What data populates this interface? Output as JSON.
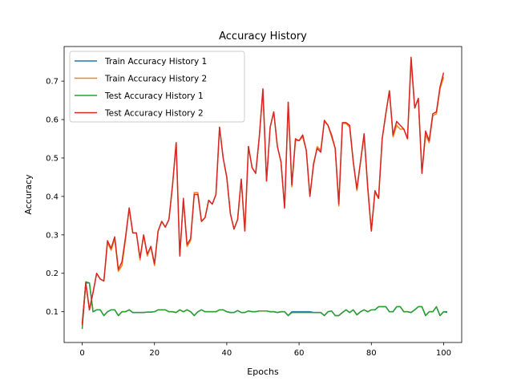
{
  "chart_data": {
    "type": "line",
    "title": "Accuracy History",
    "xlabel": "Epochs",
    "ylabel": "Accuracy",
    "xlim": [
      -5,
      105
    ],
    "ylim": [
      0.02,
      0.79
    ],
    "xticks": [
      0,
      20,
      40,
      60,
      80,
      100
    ],
    "yticks": [
      0.1,
      0.2,
      0.3,
      0.4,
      0.5,
      0.6,
      0.7
    ],
    "grid": false,
    "legend_position": "top-left",
    "series": [
      {
        "name": "Train Accuracy History 1",
        "color": "#1f77b4",
        "values": [
          0.07,
          0.175,
          0.175,
          0.1,
          0.105,
          0.105,
          0.09,
          0.1,
          0.105,
          0.105,
          0.09,
          0.1,
          0.1,
          0.105,
          0.098,
          0.098,
          0.098,
          0.098,
          0.099,
          0.099,
          0.1,
          0.105,
          0.105,
          0.105,
          0.1,
          0.1,
          0.098,
          0.105,
          0.1,
          0.105,
          0.1,
          0.09,
          0.1,
          0.105,
          0.1,
          0.1,
          0.1,
          0.1,
          0.105,
          0.105,
          0.1,
          0.098,
          0.098,
          0.103,
          0.098,
          0.098,
          0.102,
          0.1,
          0.1,
          0.102,
          0.102,
          0.102,
          0.1,
          0.1,
          0.098,
          0.1,
          0.1,
          0.09,
          0.1,
          0.1,
          0.1,
          0.1,
          0.1,
          0.1,
          0.098,
          0.098,
          0.098,
          0.09,
          0.1,
          0.102,
          0.09,
          0.09,
          0.098,
          0.105,
          0.098,
          0.105,
          0.092,
          0.1,
          0.105,
          0.1,
          0.105,
          0.105,
          0.113,
          0.113,
          0.113,
          0.1,
          0.1,
          0.113,
          0.113,
          0.1,
          0.1,
          0.098,
          0.105,
          0.113,
          0.113,
          0.09,
          0.1,
          0.1,
          0.113,
          0.09,
          0.1,
          0.1
        ]
      },
      {
        "name": "Train Accuracy History 2",
        "color": "#ff7f0e",
        "values": [
          0.07,
          0.175,
          0.105,
          0.15,
          0.2,
          0.185,
          0.18,
          0.28,
          0.26,
          0.29,
          0.205,
          0.22,
          0.29,
          0.37,
          0.305,
          0.305,
          0.235,
          0.3,
          0.245,
          0.27,
          0.22,
          0.31,
          0.335,
          0.32,
          0.34,
          0.43,
          0.54,
          0.245,
          0.39,
          0.27,
          0.285,
          0.41,
          0.41,
          0.335,
          0.345,
          0.39,
          0.38,
          0.405,
          0.58,
          0.5,
          0.45,
          0.355,
          0.315,
          0.34,
          0.445,
          0.31,
          0.53,
          0.475,
          0.46,
          0.555,
          0.675,
          0.44,
          0.58,
          0.62,
          0.53,
          0.49,
          0.37,
          0.645,
          0.425,
          0.545,
          0.545,
          0.555,
          0.52,
          0.4,
          0.48,
          0.53,
          0.52,
          0.595,
          0.585,
          0.555,
          0.525,
          0.375,
          0.59,
          0.59,
          0.58,
          0.49,
          0.415,
          0.49,
          0.56,
          0.42,
          0.31,
          0.41,
          0.395,
          0.55,
          0.615,
          0.675,
          0.555,
          0.585,
          0.575,
          0.575,
          0.55,
          0.755,
          0.63,
          0.655,
          0.46,
          0.56,
          0.54,
          0.61,
          0.615,
          0.68,
          0.71
        ]
      },
      {
        "name": "Test Accuracy History 1",
        "color": "#2ca02c",
        "values": [
          0.055,
          0.178,
          0.175,
          0.1,
          0.105,
          0.105,
          0.09,
          0.1,
          0.105,
          0.105,
          0.09,
          0.1,
          0.1,
          0.105,
          0.098,
          0.098,
          0.098,
          0.098,
          0.099,
          0.099,
          0.1,
          0.105,
          0.105,
          0.105,
          0.1,
          0.1,
          0.098,
          0.105,
          0.1,
          0.105,
          0.1,
          0.09,
          0.1,
          0.105,
          0.1,
          0.1,
          0.1,
          0.1,
          0.105,
          0.105,
          0.1,
          0.098,
          0.098,
          0.103,
          0.098,
          0.098,
          0.102,
          0.1,
          0.1,
          0.102,
          0.102,
          0.102,
          0.1,
          0.1,
          0.098,
          0.1,
          0.1,
          0.09,
          0.098,
          0.098,
          0.098,
          0.098,
          0.098,
          0.098,
          0.098,
          0.098,
          0.098,
          0.09,
          0.1,
          0.102,
          0.09,
          0.09,
          0.098,
          0.105,
          0.098,
          0.105,
          0.092,
          0.1,
          0.105,
          0.1,
          0.105,
          0.105,
          0.113,
          0.113,
          0.113,
          0.1,
          0.1,
          0.113,
          0.113,
          0.1,
          0.1,
          0.098,
          0.105,
          0.113,
          0.113,
          0.09,
          0.1,
          0.1,
          0.113,
          0.09,
          0.1,
          0.098
        ]
      },
      {
        "name": "Test Accuracy History 2",
        "color": "#d62728",
        "values": [
          0.065,
          0.175,
          0.105,
          0.15,
          0.2,
          0.185,
          0.18,
          0.285,
          0.265,
          0.295,
          0.21,
          0.23,
          0.295,
          0.37,
          0.305,
          0.305,
          0.24,
          0.3,
          0.25,
          0.27,
          0.225,
          0.31,
          0.335,
          0.32,
          0.34,
          0.43,
          0.54,
          0.245,
          0.395,
          0.275,
          0.29,
          0.405,
          0.405,
          0.335,
          0.345,
          0.39,
          0.38,
          0.405,
          0.58,
          0.5,
          0.45,
          0.355,
          0.315,
          0.34,
          0.445,
          0.31,
          0.53,
          0.475,
          0.46,
          0.555,
          0.68,
          0.44,
          0.58,
          0.62,
          0.53,
          0.49,
          0.37,
          0.645,
          0.43,
          0.55,
          0.545,
          0.56,
          0.52,
          0.4,
          0.485,
          0.525,
          0.515,
          0.598,
          0.585,
          0.56,
          0.525,
          0.38,
          0.592,
          0.592,
          0.585,
          0.49,
          0.42,
          0.49,
          0.563,
          0.425,
          0.31,
          0.415,
          0.395,
          0.55,
          0.615,
          0.675,
          0.56,
          0.595,
          0.585,
          0.575,
          0.55,
          0.762,
          0.63,
          0.655,
          0.46,
          0.57,
          0.545,
          0.615,
          0.62,
          0.685,
          0.722
        ]
      }
    ]
  }
}
